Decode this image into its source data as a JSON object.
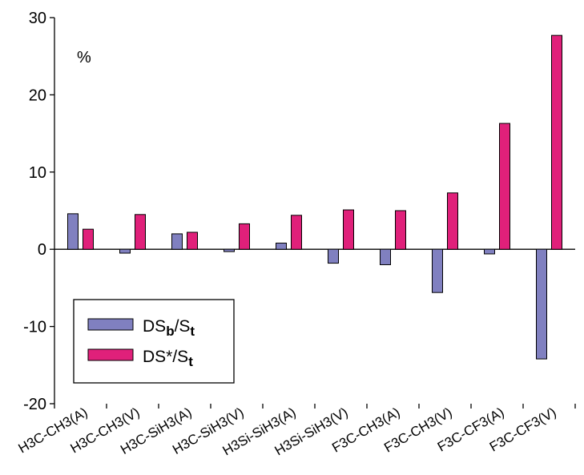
{
  "chart_data": {
    "type": "bar",
    "unit_label": "%",
    "categories": [
      "H3C-CH3(A)",
      "H3C-CH3(V)",
      "H3C-SiH3(A)",
      "H3C-SiH3(V)",
      "H3Si-SiH3(A)",
      "H3Si-SiH3(V)",
      "F3C-CH3(A)",
      "F3C-CH3(V)",
      "F3C-CF3(A)",
      "F3C-CF3(V)"
    ],
    "ylim": [
      -20,
      30
    ],
    "yticks": [
      -20,
      -10,
      0,
      10,
      20,
      30
    ],
    "grid": false,
    "legend_position": "bottom-left",
    "series": [
      {
        "name": "DSb/St",
        "legend": {
          "main": "DS",
          "sub1": "b",
          "sep": "/S",
          "sub2": "t"
        },
        "color": "#8080c0",
        "values": [
          4.6,
          -0.5,
          2.0,
          -0.3,
          0.8,
          -1.8,
          -2.0,
          -5.6,
          -0.6,
          -14.2
        ]
      },
      {
        "name": "DS*/St",
        "legend": {
          "main": "DS*/S",
          "sub2": "t"
        },
        "color": "#e0207a",
        "values": [
          2.6,
          4.5,
          2.2,
          3.3,
          4.4,
          5.1,
          5.0,
          7.3,
          16.3,
          27.7
        ]
      }
    ]
  }
}
